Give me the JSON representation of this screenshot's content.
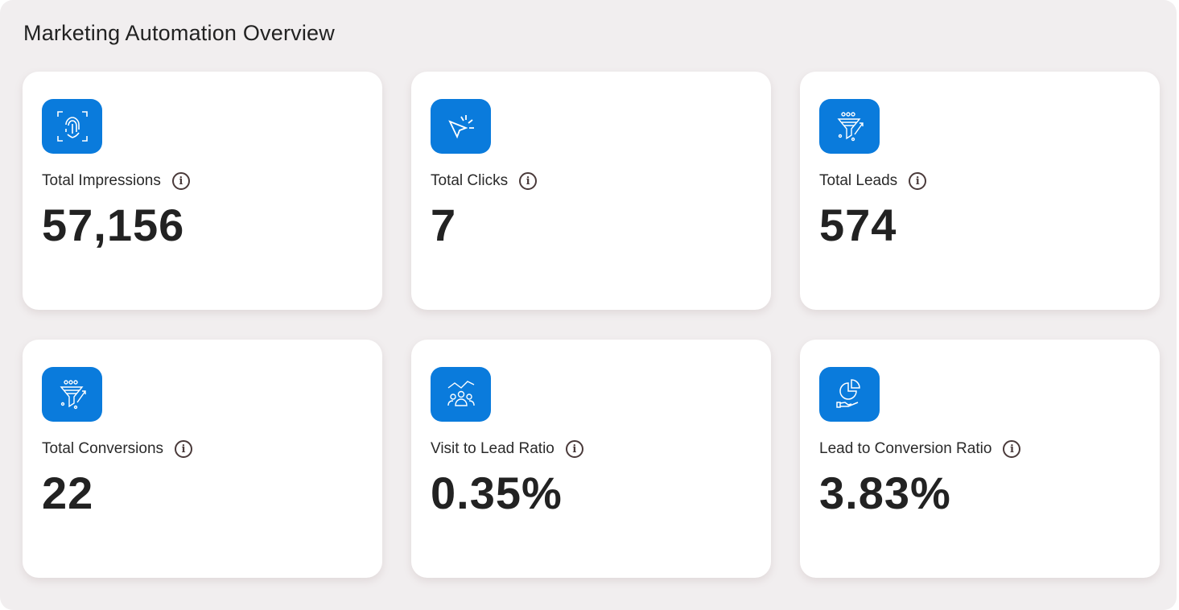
{
  "header": {
    "title": "Marketing Automation Overview"
  },
  "colors": {
    "icon_bg": "#0a7bdc",
    "panel_bg": "#f1eeef"
  },
  "cards": [
    {
      "label": "Total Impressions",
      "value": "57,156",
      "icon": "fingerprint-icon"
    },
    {
      "label": "Total Clicks",
      "value": "7",
      "icon": "cursor-click-icon"
    },
    {
      "label": "Total Leads",
      "value": "574",
      "icon": "funnel-people-icon"
    },
    {
      "label": "Total Conversions",
      "value": "22",
      "icon": "funnel-people-icon"
    },
    {
      "label": "Visit to Lead Ratio",
      "value": "0.35%",
      "icon": "people-trend-icon"
    },
    {
      "label": "Lead to Conversion Ratio",
      "value": "3.83%",
      "icon": "pie-hand-icon"
    }
  ],
  "info_glyph": "i"
}
